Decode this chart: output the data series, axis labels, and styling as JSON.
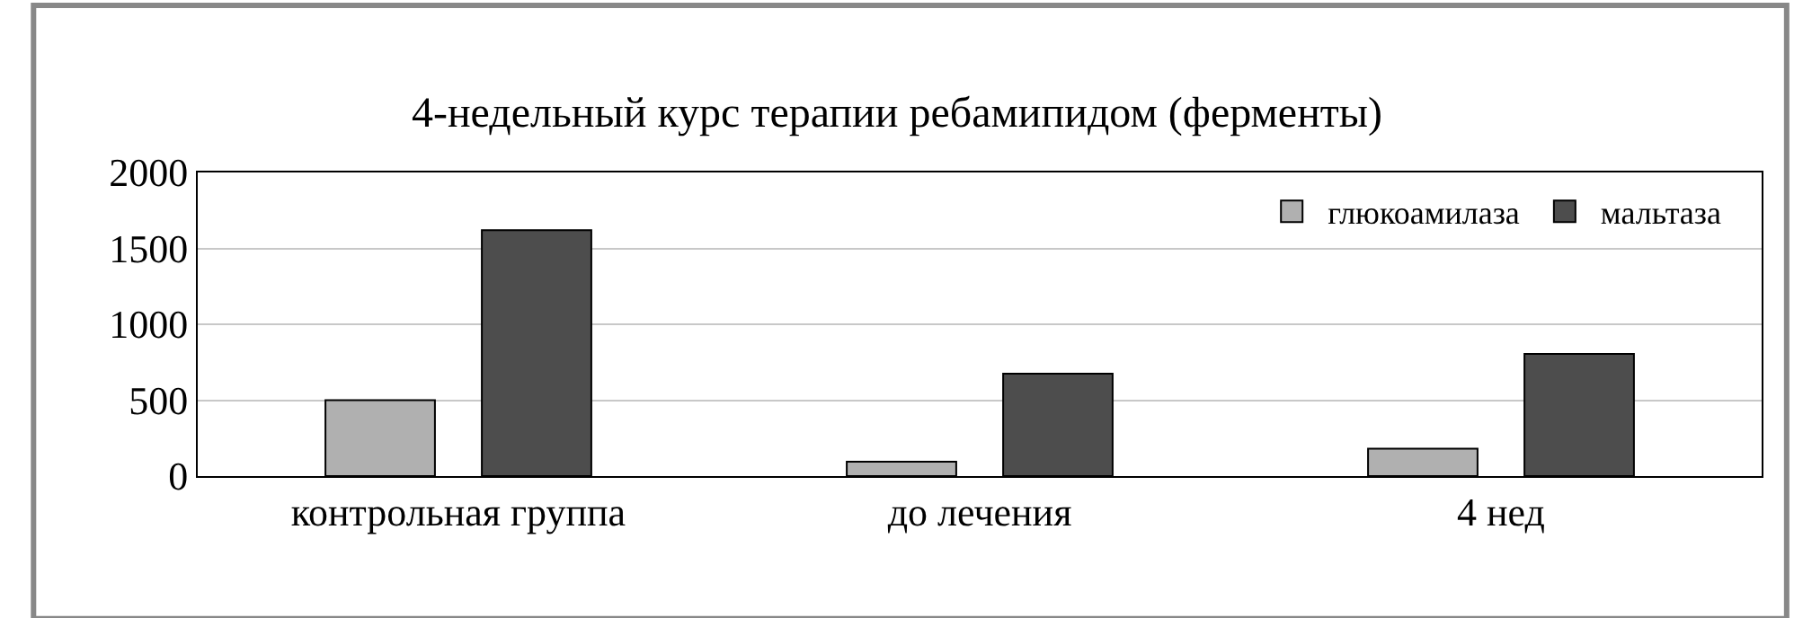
{
  "chart_data": {
    "type": "bar",
    "title": "4-недельный курс терапии ребамипидом (ферменты)",
    "categories": [
      "контрольная группа",
      "до лечения",
      "4 нед"
    ],
    "series": [
      {
        "name": "глюкоамилаза",
        "color": "#b0b0b0",
        "values": [
          500,
          95,
          180
        ]
      },
      {
        "name": "мальтаза",
        "color": "#4d4d4d",
        "values": [
          1620,
          675,
          805
        ]
      }
    ],
    "ylim": [
      0,
      2000
    ],
    "yticks": [
      0,
      500,
      1000,
      1500,
      2000
    ],
    "grid": "y",
    "legend": "top right"
  }
}
